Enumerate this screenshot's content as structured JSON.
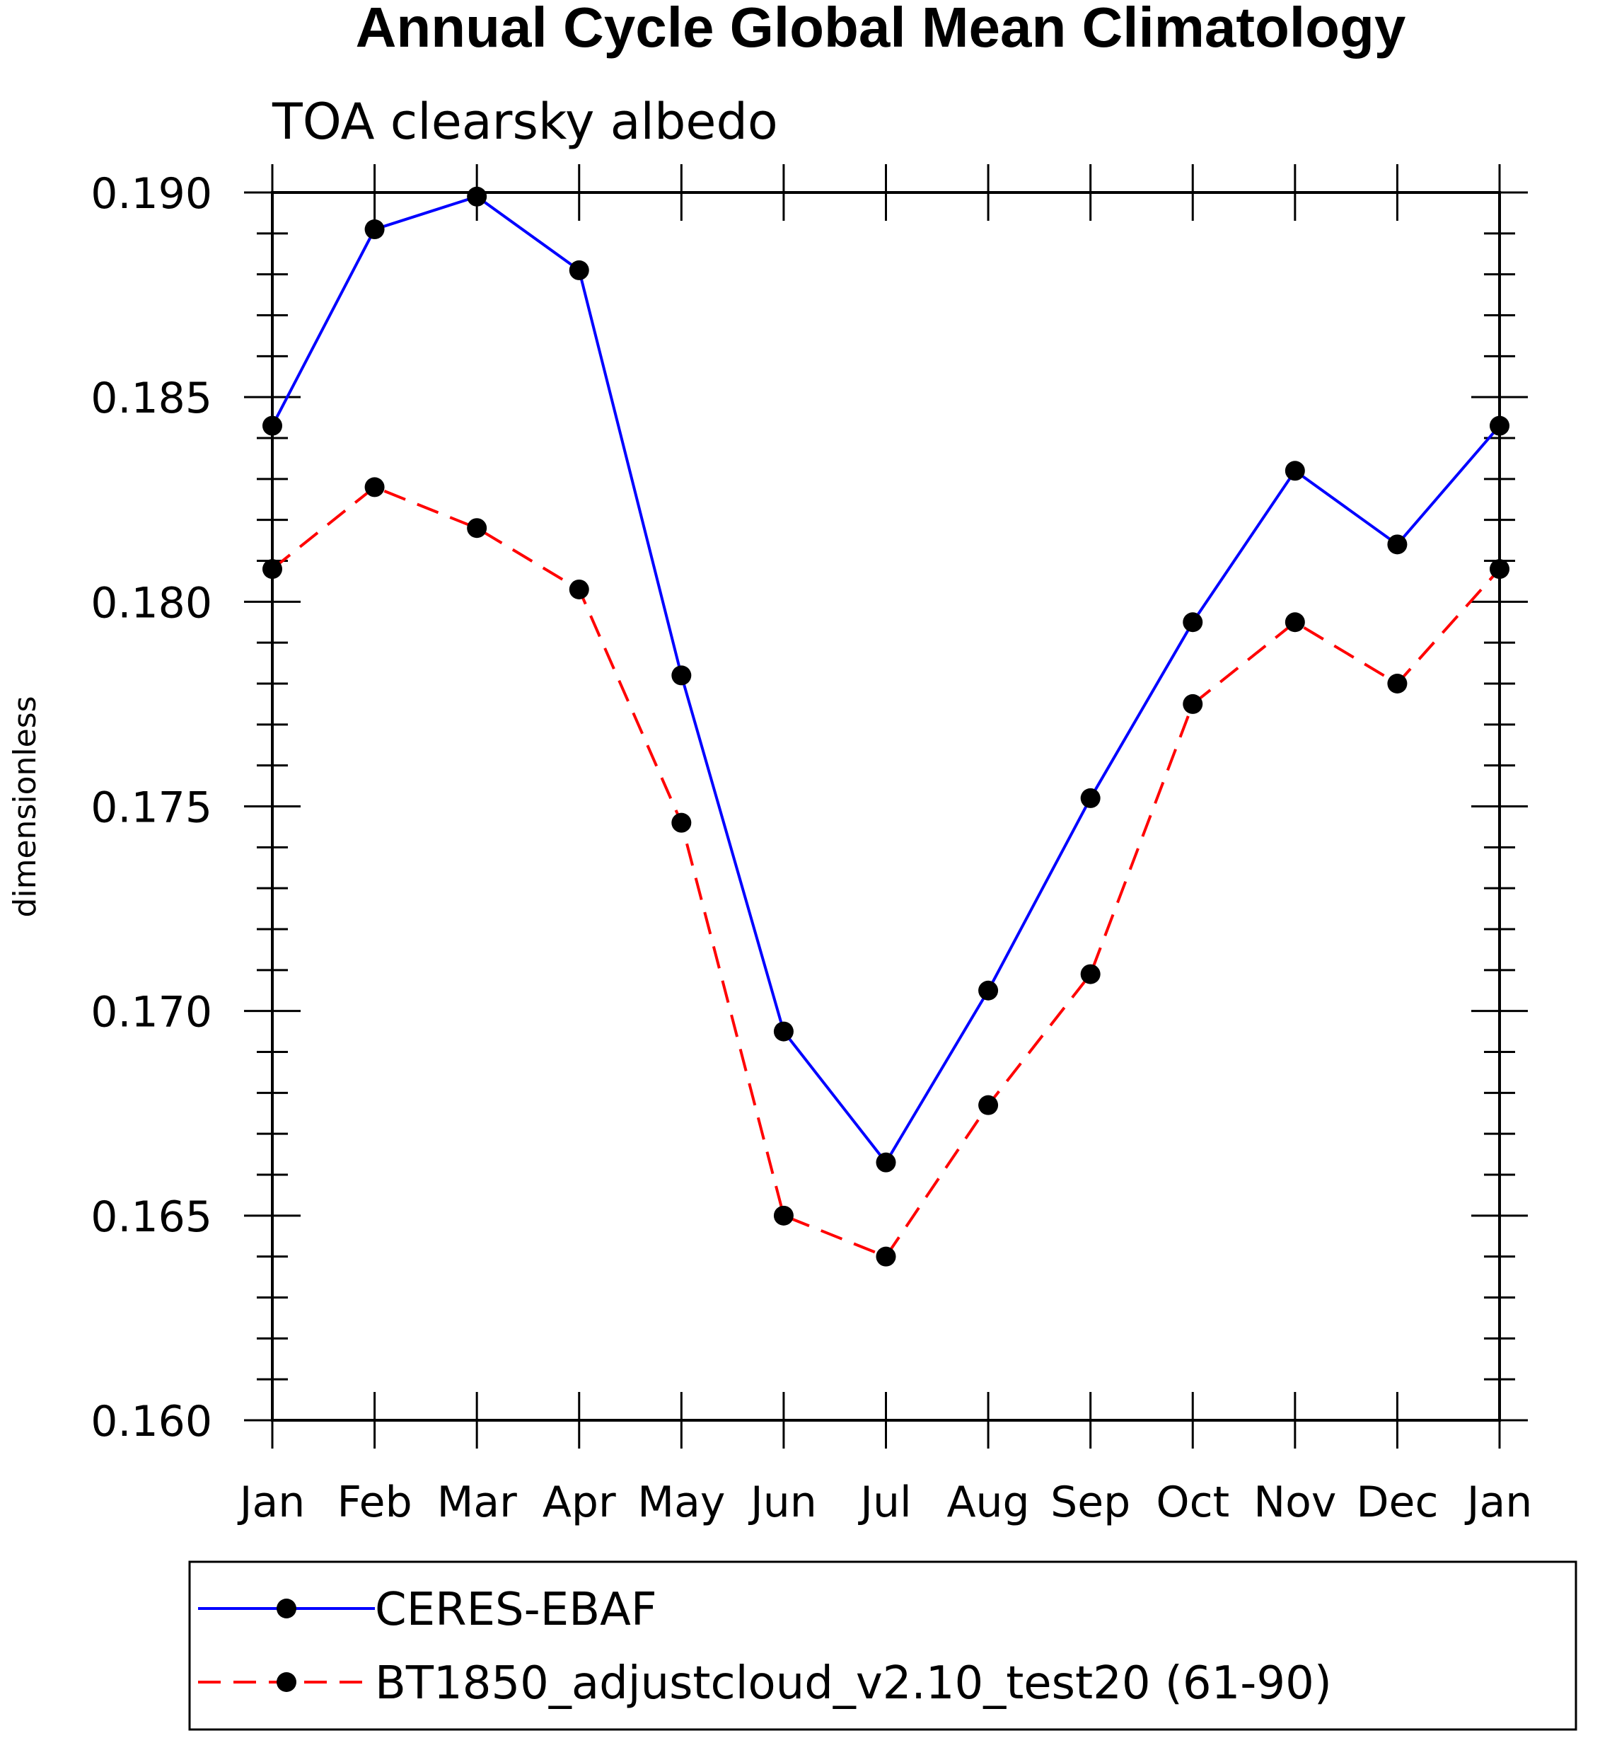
{
  "chart_data": {
    "type": "line",
    "title": "Annual Cycle Global Mean Climatology",
    "subtitle": "TOA clearsky albedo",
    "xlabel": "",
    "ylabel": "dimensionless",
    "categories": [
      "Jan",
      "Feb",
      "Mar",
      "Apr",
      "May",
      "Jun",
      "Jul",
      "Aug",
      "Sep",
      "Oct",
      "Nov",
      "Dec",
      "Jan"
    ],
    "ylim": [
      0.16,
      0.19
    ],
    "y_ticks": [
      "0.160",
      "0.165",
      "0.170",
      "0.175",
      "0.180",
      "0.185",
      "0.190"
    ],
    "y_tick_values": [
      0.16,
      0.165,
      0.17,
      0.175,
      0.18,
      0.185,
      0.19
    ],
    "grid": false,
    "legend_position": "bottom",
    "series": [
      {
        "name": "CERES-EBAF",
        "color": "#0000ff",
        "dash": "solid",
        "marker": "filled-circle",
        "values": [
          0.1843,
          0.1891,
          0.1899,
          0.1881,
          0.1782,
          0.1695,
          0.1663,
          0.1705,
          0.1752,
          0.1795,
          0.1832,
          0.1814,
          0.1843
        ]
      },
      {
        "name": "BT1850_adjustcloud_v2.10_test20 (61-90)",
        "color": "#ff0000",
        "dash": "dashed",
        "marker": "filled-circle",
        "values": [
          0.1808,
          0.1828,
          0.1818,
          0.1803,
          0.1746,
          0.165,
          0.164,
          0.1677,
          0.1709,
          0.1775,
          0.1795,
          0.178,
          0.1808
        ]
      }
    ]
  }
}
